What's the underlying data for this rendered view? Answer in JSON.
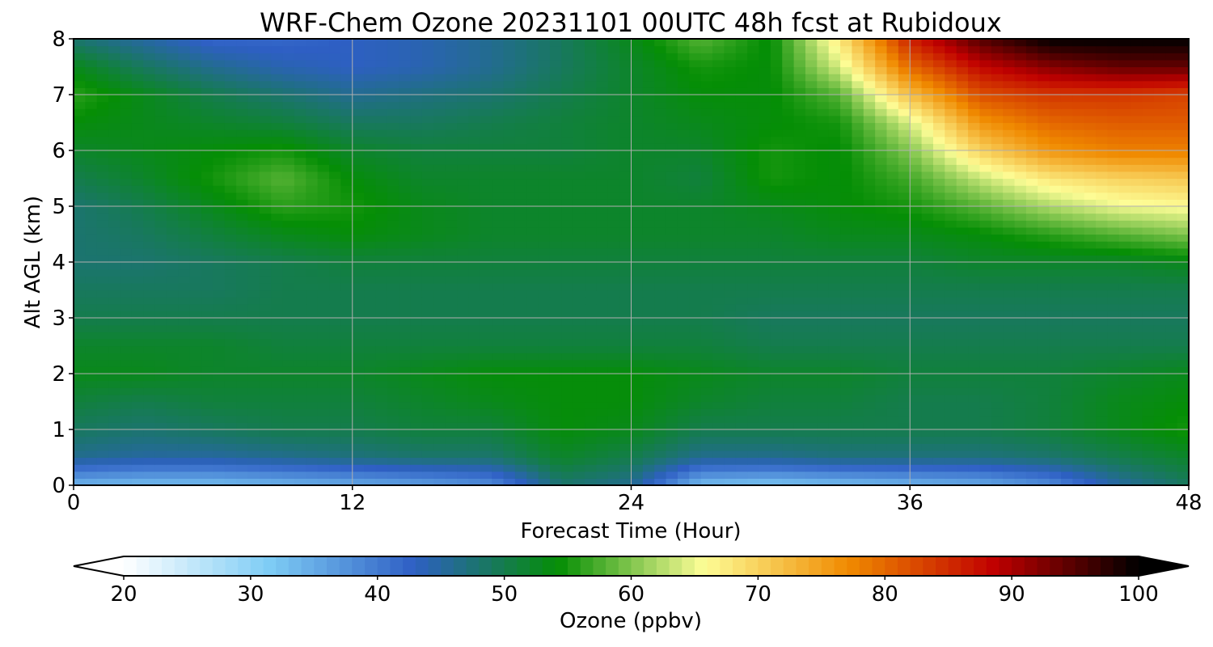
{
  "chart_data": {
    "type": "heatmap",
    "title": "WRF-Chem Ozone  20231101 00UTC 48h fcst at Rubidoux",
    "xlabel": "Forecast Time (Hour)",
    "ylabel": "Alt AGL (km)",
    "xlim": [
      0,
      48
    ],
    "ylim": [
      0,
      8
    ],
    "x_ticks": [
      0,
      12,
      24,
      36,
      48
    ],
    "y_ticks": [
      0,
      1,
      2,
      3,
      4,
      5,
      6,
      7,
      8
    ],
    "grid": true,
    "x": [
      0,
      3,
      6,
      9,
      12,
      15,
      18,
      21,
      24,
      27,
      30,
      33,
      36,
      39,
      42,
      45,
      48
    ],
    "y": [
      0,
      0.5,
      1,
      1.5,
      2,
      2.5,
      3,
      3.5,
      4,
      4.5,
      5,
      5.5,
      6,
      6.5,
      7,
      7.5,
      8
    ],
    "z": [
      [
        34,
        33,
        33,
        34,
        35,
        36,
        38,
        48,
        46,
        33,
        32,
        33,
        34,
        35,
        38,
        45,
        49
      ],
      [
        46,
        45,
        45,
        46,
        47,
        48,
        48,
        52,
        50,
        46,
        46,
        47,
        47,
        47,
        48,
        50,
        52
      ],
      [
        49,
        48,
        49,
        50,
        50,
        51,
        51,
        54,
        53,
        50,
        50,
        50,
        50,
        50,
        51,
        53,
        55
      ],
      [
        51,
        50,
        51,
        51,
        51,
        52,
        53,
        54,
        54,
        52,
        51,
        51,
        50,
        50,
        51,
        53,
        54
      ],
      [
        53,
        53,
        52,
        52,
        52,
        53,
        54,
        54,
        54,
        53,
        52,
        52,
        51,
        51,
        51,
        52,
        53
      ],
      [
        52,
        52,
        52,
        51,
        51,
        51,
        51,
        51,
        51,
        51,
        50,
        50,
        50,
        50,
        50,
        50,
        50
      ],
      [
        50,
        50,
        50,
        50,
        50,
        50,
        50,
        50,
        50,
        50,
        49,
        49,
        49,
        49,
        49,
        49,
        49
      ],
      [
        49,
        49,
        49,
        50,
        50,
        50,
        50,
        50,
        50,
        50,
        50,
        50,
        50,
        50,
        50,
        50,
        50
      ],
      [
        48,
        48,
        49,
        50,
        51,
        51,
        51,
        51,
        51,
        51,
        51,
        51,
        51,
        52,
        52,
        52,
        53
      ],
      [
        48,
        49,
        51,
        53,
        54,
        53,
        52,
        52,
        52,
        52,
        52,
        53,
        53,
        54,
        56,
        58,
        60
      ],
      [
        48,
        50,
        53,
        56,
        55,
        53,
        52,
        52,
        52,
        52,
        53,
        54,
        55,
        58,
        62,
        65,
        66
      ],
      [
        50,
        52,
        55,
        58,
        54,
        52,
        52,
        52,
        52,
        51,
        55,
        54,
        57,
        63,
        68,
        70,
        71
      ],
      [
        52,
        53,
        54,
        55,
        52,
        51,
        51,
        51,
        52,
        52,
        55,
        54,
        60,
        70,
        76,
        78,
        78
      ],
      [
        54,
        53,
        52,
        51,
        49,
        49,
        50,
        51,
        52,
        53,
        54,
        55,
        64,
        76,
        80,
        81,
        81
      ],
      [
        56,
        53,
        50,
        48,
        46,
        47,
        48,
        50,
        52,
        54,
        54,
        58,
        72,
        82,
        84,
        84,
        83
      ],
      [
        53,
        49,
        46,
        44,
        43,
        44,
        46,
        49,
        52,
        55,
        54,
        64,
        80,
        88,
        92,
        94,
        94
      ],
      [
        48,
        45,
        42,
        42,
        43,
        44,
        46,
        49,
        53,
        58,
        54,
        68,
        86,
        95,
        100,
        100,
        100
      ]
    ],
    "colorbar": {
      "label": "Ozone  (ppbv)",
      "min": 20,
      "max": 100,
      "ticks": [
        20,
        30,
        40,
        50,
        60,
        70,
        80,
        90,
        100
      ],
      "extend": "both",
      "colors": [
        "#ffffff",
        "#7fcdf5",
        "#2e5fc4",
        "#058e05",
        "#fdfd96",
        "#f08a00",
        "#c00000",
        "#000000"
      ]
    }
  }
}
